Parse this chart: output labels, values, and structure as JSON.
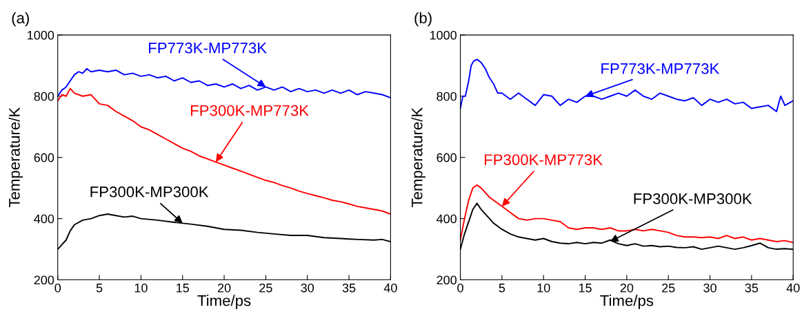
{
  "chart_data": [
    {
      "type": "line",
      "title": "(a)",
      "xlabel": "Time/ps",
      "ylabel": "Temperature/K",
      "xlim": [
        0,
        40
      ],
      "ylim": [
        200,
        1000
      ],
      "xticks": [
        0,
        5,
        10,
        15,
        20,
        25,
        30,
        35,
        40
      ],
      "yticks": [
        200,
        400,
        600,
        800,
        1000
      ],
      "grid": false,
      "legend": false,
      "marker": "none",
      "line_style": "solid",
      "series": [
        {
          "color": "#0000ff",
          "x": [
            0,
            0.5,
            1,
            1.5,
            2,
            2.5,
            3,
            3.5,
            4,
            5,
            6,
            7,
            8,
            9,
            10,
            11,
            12,
            13,
            14,
            15,
            16,
            17,
            18,
            19,
            20,
            21,
            22,
            23,
            24,
            25,
            26,
            27,
            28,
            29,
            30,
            31,
            32,
            33,
            34,
            35,
            36,
            37,
            38,
            39,
            40
          ],
          "values": [
            800,
            820,
            830,
            850,
            870,
            880,
            875,
            890,
            880,
            885,
            880,
            885,
            870,
            875,
            865,
            870,
            860,
            865,
            850,
            860,
            845,
            850,
            835,
            840,
            830,
            840,
            825,
            835,
            820,
            830,
            820,
            830,
            815,
            825,
            815,
            820,
            810,
            820,
            810,
            820,
            805,
            815,
            810,
            805,
            795
          ]
        },
        {
          "color": "#ff0000",
          "x": [
            0,
            0.5,
            1,
            1.5,
            2,
            3,
            4,
            5,
            6,
            7,
            8,
            9,
            10,
            11,
            12,
            13,
            14,
            15,
            16,
            17,
            18,
            19,
            20,
            21,
            22,
            23,
            24,
            25,
            26,
            27,
            28,
            29,
            30,
            31,
            32,
            33,
            34,
            35,
            36,
            37,
            38,
            39,
            40
          ],
          "values": [
            785,
            805,
            800,
            825,
            810,
            800,
            805,
            775,
            770,
            750,
            735,
            720,
            700,
            690,
            675,
            660,
            645,
            630,
            620,
            605,
            595,
            585,
            575,
            565,
            555,
            545,
            535,
            525,
            518,
            508,
            500,
            490,
            482,
            475,
            468,
            460,
            455,
            448,
            440,
            435,
            430,
            425,
            415
          ]
        },
        {
          "color": "#000000",
          "x": [
            0,
            0.5,
            1,
            1.5,
            2,
            3,
            4,
            5,
            6,
            7,
            8,
            9,
            10,
            12,
            14,
            16,
            18,
            20,
            22,
            24,
            26,
            28,
            30,
            32,
            34,
            36,
            38,
            39,
            40
          ],
          "values": [
            300,
            315,
            330,
            360,
            380,
            395,
            400,
            410,
            415,
            410,
            405,
            408,
            400,
            395,
            388,
            382,
            375,
            365,
            362,
            355,
            350,
            345,
            345,
            338,
            335,
            332,
            330,
            332,
            325
          ]
        }
      ],
      "annotations": [
        {
          "text": "FP773K-MP773K",
          "x": 25,
          "y": 830
        },
        {
          "text": "FP300K-MP773K",
          "x": 19,
          "y": 585
        },
        {
          "text": "FP300K-MP300K",
          "x": 15,
          "y": 385
        }
      ]
    },
    {
      "type": "line",
      "title": "(b)",
      "xlabel": "Time/ps",
      "ylabel": "Temperature/K",
      "xlim": [
        0,
        40
      ],
      "ylim": [
        200,
        1000
      ],
      "xticks": [
        0,
        5,
        10,
        15,
        20,
        25,
        30,
        35,
        40
      ],
      "yticks": [
        200,
        400,
        600,
        800,
        1000
      ],
      "grid": false,
      "legend": false,
      "marker": "none",
      "line_style": "solid",
      "series": [
        {
          "color": "#0000ff",
          "x": [
            0,
            0.3,
            0.6,
            1,
            1.3,
            1.6,
            2,
            2.5,
            3,
            3.5,
            4,
            4.5,
            5,
            6,
            7,
            8,
            9,
            10,
            11,
            12,
            13,
            14,
            15,
            16,
            17,
            18,
            19,
            20,
            21,
            22,
            23,
            24,
            25,
            26,
            27,
            28,
            29,
            30,
            31,
            32,
            33,
            34,
            35,
            36,
            37,
            38,
            38.5,
            39,
            40
          ],
          "values": [
            760,
            800,
            800,
            850,
            900,
            915,
            920,
            910,
            890,
            860,
            840,
            810,
            810,
            790,
            810,
            790,
            770,
            805,
            800,
            770,
            790,
            780,
            800,
            800,
            790,
            800,
            810,
            800,
            820,
            800,
            790,
            810,
            800,
            790,
            785,
            795,
            770,
            790,
            780,
            790,
            775,
            780,
            760,
            765,
            770,
            750,
            800,
            770,
            785
          ]
        },
        {
          "color": "#ff0000",
          "x": [
            0,
            0.5,
            1,
            1.5,
            2,
            2.5,
            3,
            3.5,
            4,
            5,
            6,
            7,
            8,
            9,
            10,
            11,
            12,
            13,
            14,
            15,
            16,
            17,
            18,
            19,
            20,
            21,
            22,
            23,
            24,
            25,
            26,
            27,
            28,
            29,
            30,
            31,
            32,
            33,
            34,
            35,
            36,
            37,
            38,
            39,
            40
          ],
          "values": [
            330,
            400,
            460,
            500,
            510,
            500,
            485,
            470,
            460,
            440,
            420,
            400,
            395,
            400,
            400,
            395,
            390,
            370,
            365,
            370,
            370,
            365,
            370,
            360,
            360,
            365,
            360,
            365,
            360,
            355,
            345,
            340,
            340,
            338,
            340,
            335,
            345,
            335,
            340,
            330,
            335,
            330,
            325,
            328,
            322
          ]
        },
        {
          "color": "#000000",
          "x": [
            0,
            0.5,
            1,
            1.5,
            2,
            2.5,
            3,
            3.5,
            4,
            5,
            6,
            7,
            8,
            9,
            10,
            11,
            12,
            13,
            14,
            15,
            16,
            17,
            18,
            19,
            20,
            21,
            22,
            23,
            24,
            25,
            26,
            27,
            28,
            29,
            30,
            31,
            32,
            33,
            34,
            35,
            36,
            37,
            38,
            39,
            40
          ],
          "values": [
            300,
            350,
            390,
            430,
            450,
            430,
            415,
            400,
            385,
            365,
            350,
            340,
            335,
            330,
            335,
            325,
            320,
            318,
            322,
            318,
            322,
            320,
            330,
            318,
            312,
            318,
            310,
            312,
            308,
            310,
            306,
            305,
            308,
            300,
            305,
            310,
            305,
            300,
            305,
            312,
            320,
            305,
            300,
            302,
            300
          ]
        }
      ],
      "annotations": [
        {
          "text": "FP773K-MP773K",
          "x": 15,
          "y": 800
        },
        {
          "text": "FP300K-MP773K",
          "x": 5,
          "y": 440
        },
        {
          "text": "FP300K-MP300K",
          "x": 18,
          "y": 325
        }
      ]
    }
  ]
}
